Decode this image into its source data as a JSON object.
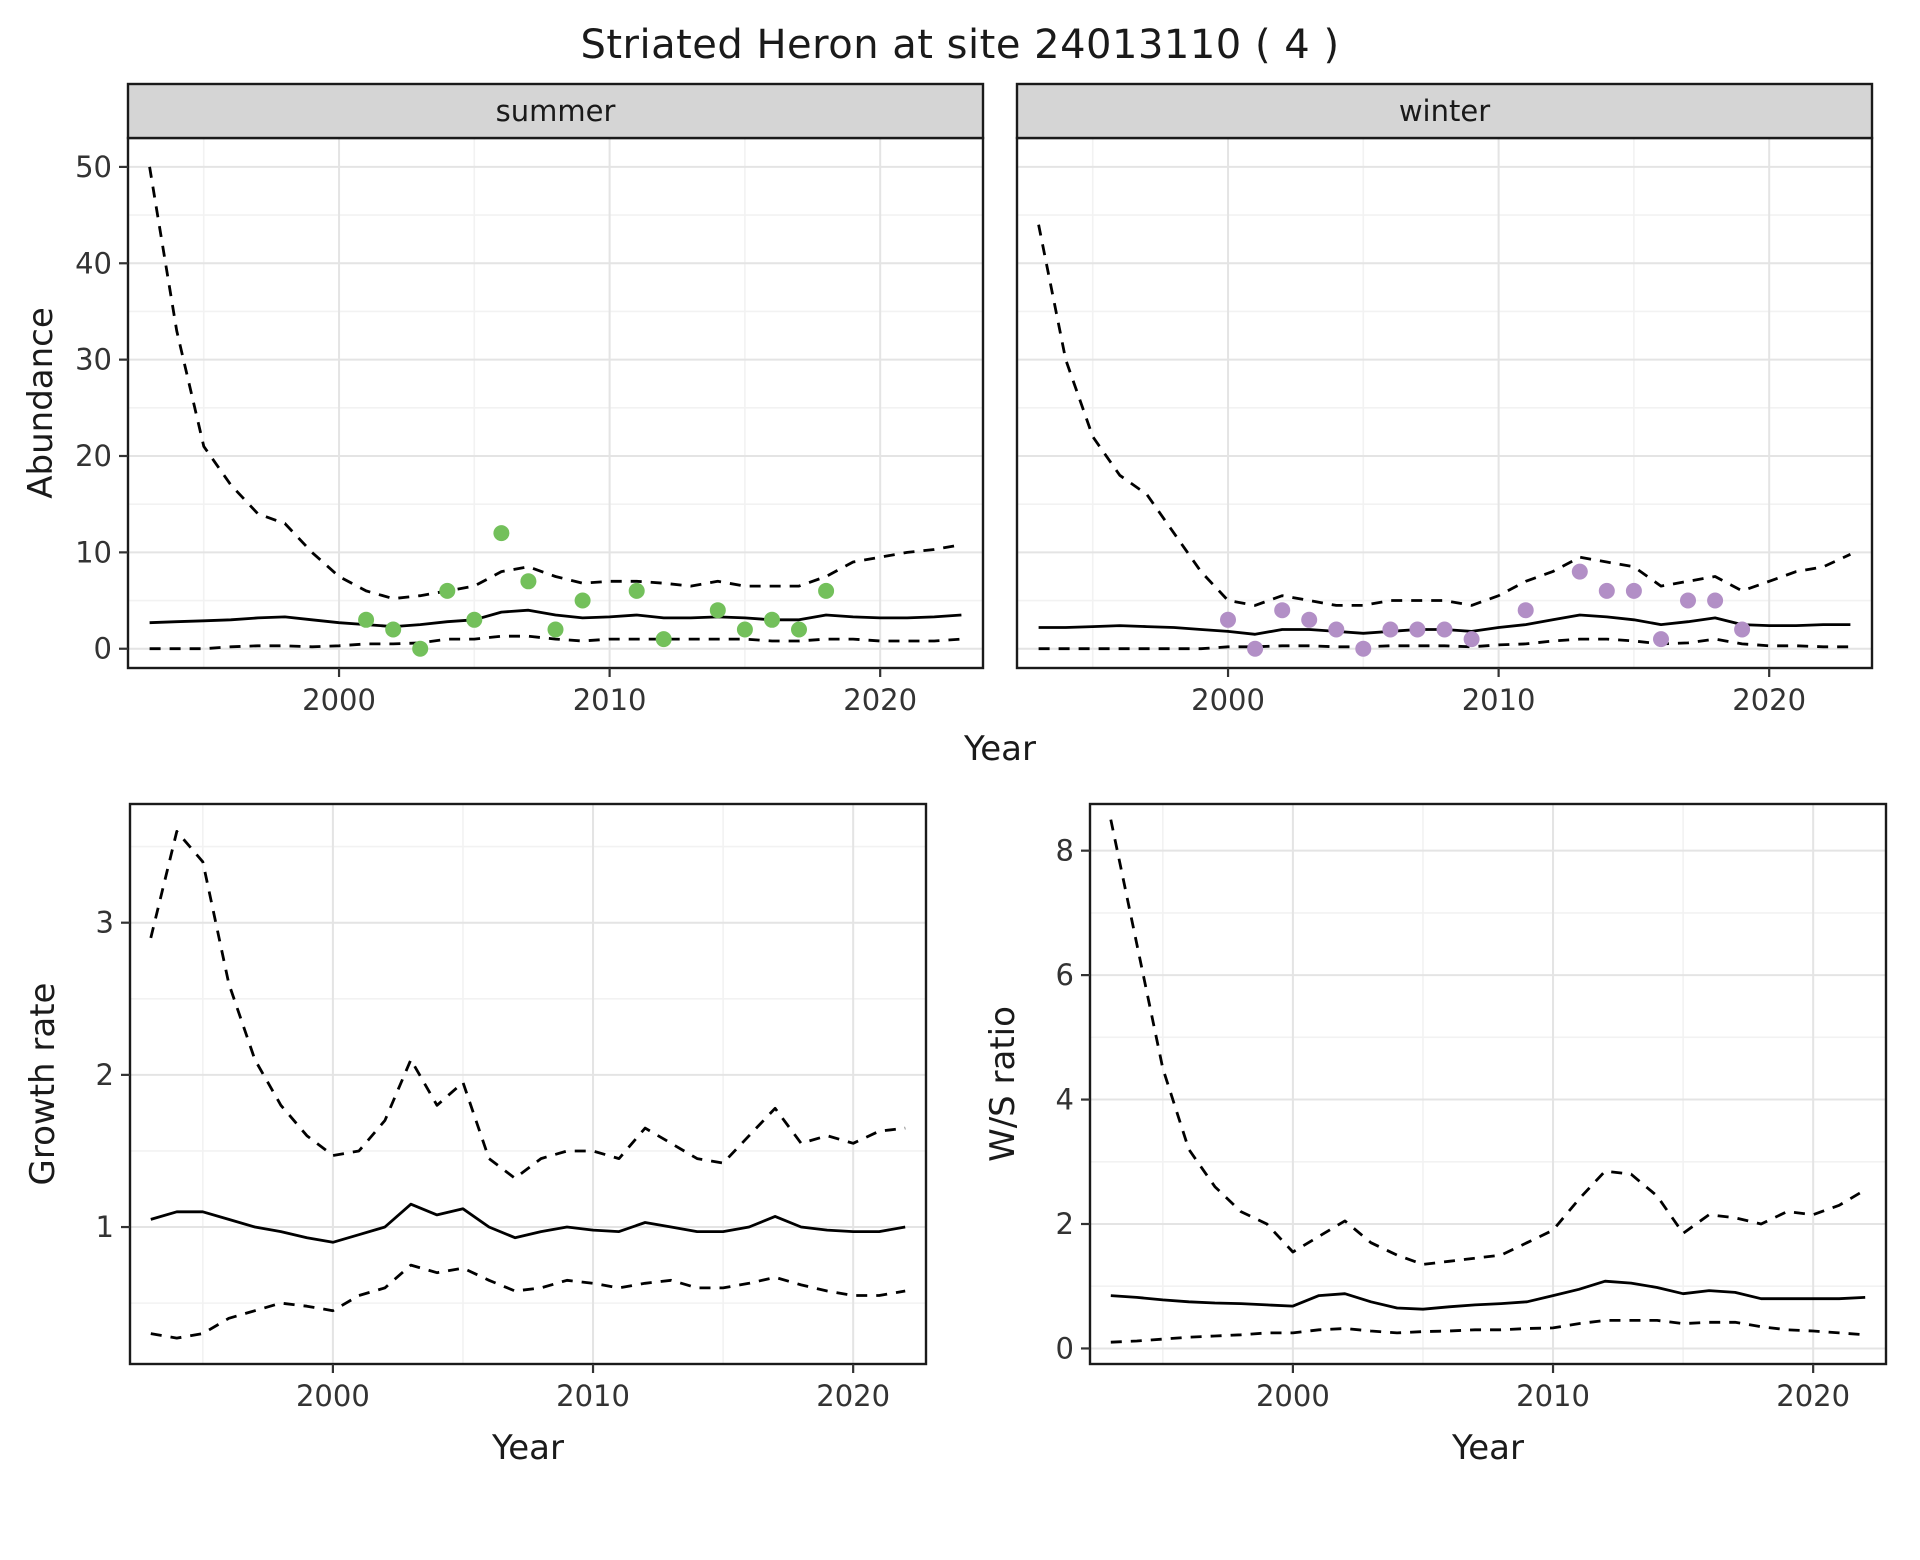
{
  "title": "Striated Heron at site 24013110 ( 4 )",
  "colors": {
    "summer_point": "#73c05b",
    "winter_point": "#b28fc6",
    "line": "#000000",
    "grid_major": "#e4e4e4",
    "grid_minor": "#f2f2f2",
    "strip_bg": "#d5d5d5",
    "panel_border": "#1a1a1a",
    "tick_text": "#333333",
    "title_text": "#1a1a1a"
  },
  "chart_data": [
    {
      "id": "abundance",
      "type": "line",
      "xlabel": "Year",
      "ylabel": "Abundance",
      "xlim": [
        1992.2,
        2023.8
      ],
      "ylim": [
        -2,
        53
      ],
      "xticks": [
        2000,
        2010,
        2020
      ],
      "yticks": [
        0,
        10,
        20,
        30,
        40,
        50
      ],
      "xminor": [
        1995,
        2005,
        2015
      ],
      "yminor": [
        5,
        15,
        25,
        35,
        45
      ],
      "facets": [
        {
          "label": "summer",
          "x": [
            1993,
            1994,
            1995,
            1996,
            1997,
            1998,
            1999,
            2000,
            2001,
            2002,
            2003,
            2004,
            2005,
            2006,
            2007,
            2008,
            2009,
            2010,
            2011,
            2012,
            2013,
            2014,
            2015,
            2016,
            2017,
            2018,
            2019,
            2020,
            2021,
            2022,
            2023
          ],
          "series": [
            {
              "name": "upper-ci",
              "style": "dashed",
              "values": [
                50,
                33,
                21,
                17,
                14,
                13,
                10,
                7.5,
                6,
                5.2,
                5.5,
                6,
                6.5,
                8,
                8.5,
                7.5,
                6.8,
                7,
                7,
                6.8,
                6.5,
                7,
                6.5,
                6.5,
                6.5,
                7.5,
                9,
                9.5,
                10,
                10.3,
                10.8
              ]
            },
            {
              "name": "mean",
              "style": "solid",
              "values": [
                2.7,
                2.8,
                2.9,
                3.0,
                3.2,
                3.3,
                3.0,
                2.7,
                2.5,
                2.3,
                2.5,
                2.8,
                3.0,
                3.8,
                4.0,
                3.5,
                3.2,
                3.3,
                3.5,
                3.2,
                3.2,
                3.3,
                3.2,
                3.0,
                3.0,
                3.5,
                3.3,
                3.2,
                3.2,
                3.3,
                3.5
              ]
            },
            {
              "name": "lower-ci",
              "style": "dashed",
              "values": [
                0,
                0,
                0,
                0.2,
                0.3,
                0.3,
                0.2,
                0.3,
                0.5,
                0.5,
                0.6,
                1.0,
                1.0,
                1.3,
                1.3,
                1.0,
                0.8,
                1.0,
                1.0,
                1.0,
                1.0,
                1.0,
                1.0,
                0.8,
                0.8,
                1.0,
                1.0,
                0.8,
                0.8,
                0.8,
                1.0
              ]
            }
          ],
          "points": {
            "name": "observed-summer",
            "color_key": "summer_point",
            "x": [
              2001,
              2002,
              2003,
              2004,
              2005,
              2006,
              2007,
              2008,
              2009,
              2011,
              2012,
              2014,
              2015,
              2016,
              2017,
              2018
            ],
            "y": [
              3,
              2,
              0,
              6,
              3,
              12,
              7,
              2,
              5,
              6,
              1,
              4,
              2,
              3,
              2,
              6
            ]
          }
        },
        {
          "label": "winter",
          "x": [
            1993,
            1994,
            1995,
            1996,
            1997,
            1998,
            1999,
            2000,
            2001,
            2002,
            2003,
            2004,
            2005,
            2006,
            2007,
            2008,
            2009,
            2010,
            2011,
            2012,
            2013,
            2014,
            2015,
            2016,
            2017,
            2018,
            2019,
            2020,
            2021,
            2022,
            2023
          ],
          "series": [
            {
              "name": "upper-ci",
              "style": "dashed",
              "values": [
                44,
                30,
                22,
                18,
                16,
                12,
                8,
                5,
                4.5,
                5.5,
                5,
                4.5,
                4.5,
                5,
                5,
                5,
                4.5,
                5.5,
                7,
                8,
                9.5,
                9,
                8.5,
                6.5,
                7,
                7.5,
                6,
                7,
                8,
                8.5,
                9.8
              ]
            },
            {
              "name": "mean",
              "style": "solid",
              "values": [
                2.2,
                2.2,
                2.3,
                2.4,
                2.3,
                2.2,
                2.0,
                1.8,
                1.5,
                2.0,
                2.0,
                1.8,
                1.6,
                1.8,
                2.0,
                2.0,
                1.8,
                2.2,
                2.5,
                3.0,
                3.5,
                3.3,
                3.0,
                2.5,
                2.8,
                3.2,
                2.5,
                2.4,
                2.4,
                2.5,
                2.5
              ]
            },
            {
              "name": "lower-ci",
              "style": "dashed",
              "values": [
                0,
                0,
                0,
                0,
                0,
                0,
                0,
                0.2,
                0.2,
                0.3,
                0.3,
                0.2,
                0.2,
                0.3,
                0.3,
                0.3,
                0.2,
                0.4,
                0.5,
                0.8,
                1.0,
                1.0,
                0.8,
                0.5,
                0.6,
                1.0,
                0.5,
                0.3,
                0.3,
                0.2,
                0.2
              ]
            }
          ],
          "points": {
            "name": "observed-winter",
            "color_key": "winter_point",
            "x": [
              2000,
              2001,
              2002,
              2003,
              2004,
              2005,
              2006,
              2007,
              2008,
              2009,
              2011,
              2013,
              2014,
              2015,
              2016,
              2017,
              2018,
              2019
            ],
            "y": [
              3,
              0,
              4,
              3,
              2,
              0,
              2,
              2,
              2,
              1,
              4,
              8,
              6,
              6,
              1,
              5,
              5,
              2
            ]
          }
        }
      ]
    },
    {
      "id": "growth_rate",
      "type": "line",
      "xlabel": "Year",
      "ylabel": "Growth rate",
      "xlim": [
        1992.2,
        2022.8
      ],
      "ylim": [
        0.1,
        3.78
      ],
      "xticks": [
        2000,
        2010,
        2020
      ],
      "yticks": [
        1,
        2,
        3
      ],
      "xminor": [
        1995,
        2005,
        2015
      ],
      "yminor": [
        0.5,
        1.5,
        2.5,
        3.5
      ],
      "x": [
        1993,
        1994,
        1995,
        1996,
        1997,
        1998,
        1999,
        2000,
        2001,
        2002,
        2003,
        2004,
        2005,
        2006,
        2007,
        2008,
        2009,
        2010,
        2011,
        2012,
        2013,
        2014,
        2015,
        2016,
        2017,
        2018,
        2019,
        2020,
        2021,
        2022
      ],
      "series": [
        {
          "name": "upper-ci",
          "style": "dashed",
          "values": [
            2.9,
            3.6,
            3.4,
            2.6,
            2.1,
            1.8,
            1.6,
            1.47,
            1.5,
            1.7,
            2.1,
            1.8,
            1.95,
            1.45,
            1.32,
            1.45,
            1.5,
            1.5,
            1.45,
            1.65,
            1.55,
            1.45,
            1.42,
            1.6,
            1.78,
            1.55,
            1.6,
            1.55,
            1.63,
            1.65
          ]
        },
        {
          "name": "mean",
          "style": "solid",
          "values": [
            1.05,
            1.1,
            1.1,
            1.05,
            1.0,
            0.97,
            0.93,
            0.9,
            0.95,
            1.0,
            1.15,
            1.08,
            1.12,
            1.0,
            0.93,
            0.97,
            1.0,
            0.98,
            0.97,
            1.03,
            1.0,
            0.97,
            0.97,
            1.0,
            1.07,
            1.0,
            0.98,
            0.97,
            0.97,
            1.0
          ]
        },
        {
          "name": "lower-ci",
          "style": "dashed",
          "values": [
            0.3,
            0.27,
            0.3,
            0.4,
            0.45,
            0.5,
            0.48,
            0.45,
            0.55,
            0.6,
            0.75,
            0.7,
            0.73,
            0.65,
            0.58,
            0.6,
            0.65,
            0.63,
            0.6,
            0.63,
            0.65,
            0.6,
            0.6,
            0.63,
            0.67,
            0.62,
            0.58,
            0.55,
            0.55,
            0.58
          ]
        }
      ]
    },
    {
      "id": "ws_ratio",
      "type": "line",
      "xlabel": "Year",
      "ylabel": "W/S ratio",
      "xlim": [
        1992.2,
        2022.8
      ],
      "ylim": [
        -0.25,
        8.75
      ],
      "xticks": [
        2000,
        2010,
        2020
      ],
      "yticks": [
        0,
        2,
        4,
        6,
        8
      ],
      "xminor": [
        1995,
        2005,
        2015
      ],
      "yminor": [
        1,
        3,
        5,
        7
      ],
      "x": [
        1993,
        1994,
        1995,
        1996,
        1997,
        1998,
        1999,
        2000,
        2001,
        2002,
        2003,
        2004,
        2005,
        2006,
        2007,
        2008,
        2009,
        2010,
        2011,
        2012,
        2013,
        2014,
        2015,
        2016,
        2017,
        2018,
        2019,
        2020,
        2021,
        2022
      ],
      "series": [
        {
          "name": "upper-ci",
          "style": "dashed",
          "values": [
            8.5,
            6.5,
            4.5,
            3.2,
            2.6,
            2.2,
            2.0,
            1.55,
            1.8,
            2.05,
            1.7,
            1.5,
            1.35,
            1.4,
            1.45,
            1.5,
            1.7,
            1.9,
            2.4,
            2.85,
            2.8,
            2.45,
            1.85,
            2.15,
            2.1,
            2.0,
            2.2,
            2.15,
            2.3,
            2.55
          ]
        },
        {
          "name": "mean",
          "style": "solid",
          "values": [
            0.85,
            0.82,
            0.78,
            0.75,
            0.73,
            0.72,
            0.7,
            0.68,
            0.85,
            0.88,
            0.75,
            0.65,
            0.63,
            0.67,
            0.7,
            0.72,
            0.75,
            0.85,
            0.95,
            1.08,
            1.05,
            0.98,
            0.88,
            0.93,
            0.9,
            0.8,
            0.8,
            0.8,
            0.8,
            0.82
          ]
        },
        {
          "name": "lower-ci",
          "style": "dashed",
          "values": [
            0.1,
            0.12,
            0.15,
            0.18,
            0.2,
            0.22,
            0.25,
            0.25,
            0.3,
            0.32,
            0.28,
            0.25,
            0.27,
            0.28,
            0.3,
            0.3,
            0.32,
            0.33,
            0.4,
            0.45,
            0.45,
            0.45,
            0.4,
            0.42,
            0.42,
            0.35,
            0.3,
            0.28,
            0.25,
            0.22
          ]
        }
      ]
    }
  ]
}
